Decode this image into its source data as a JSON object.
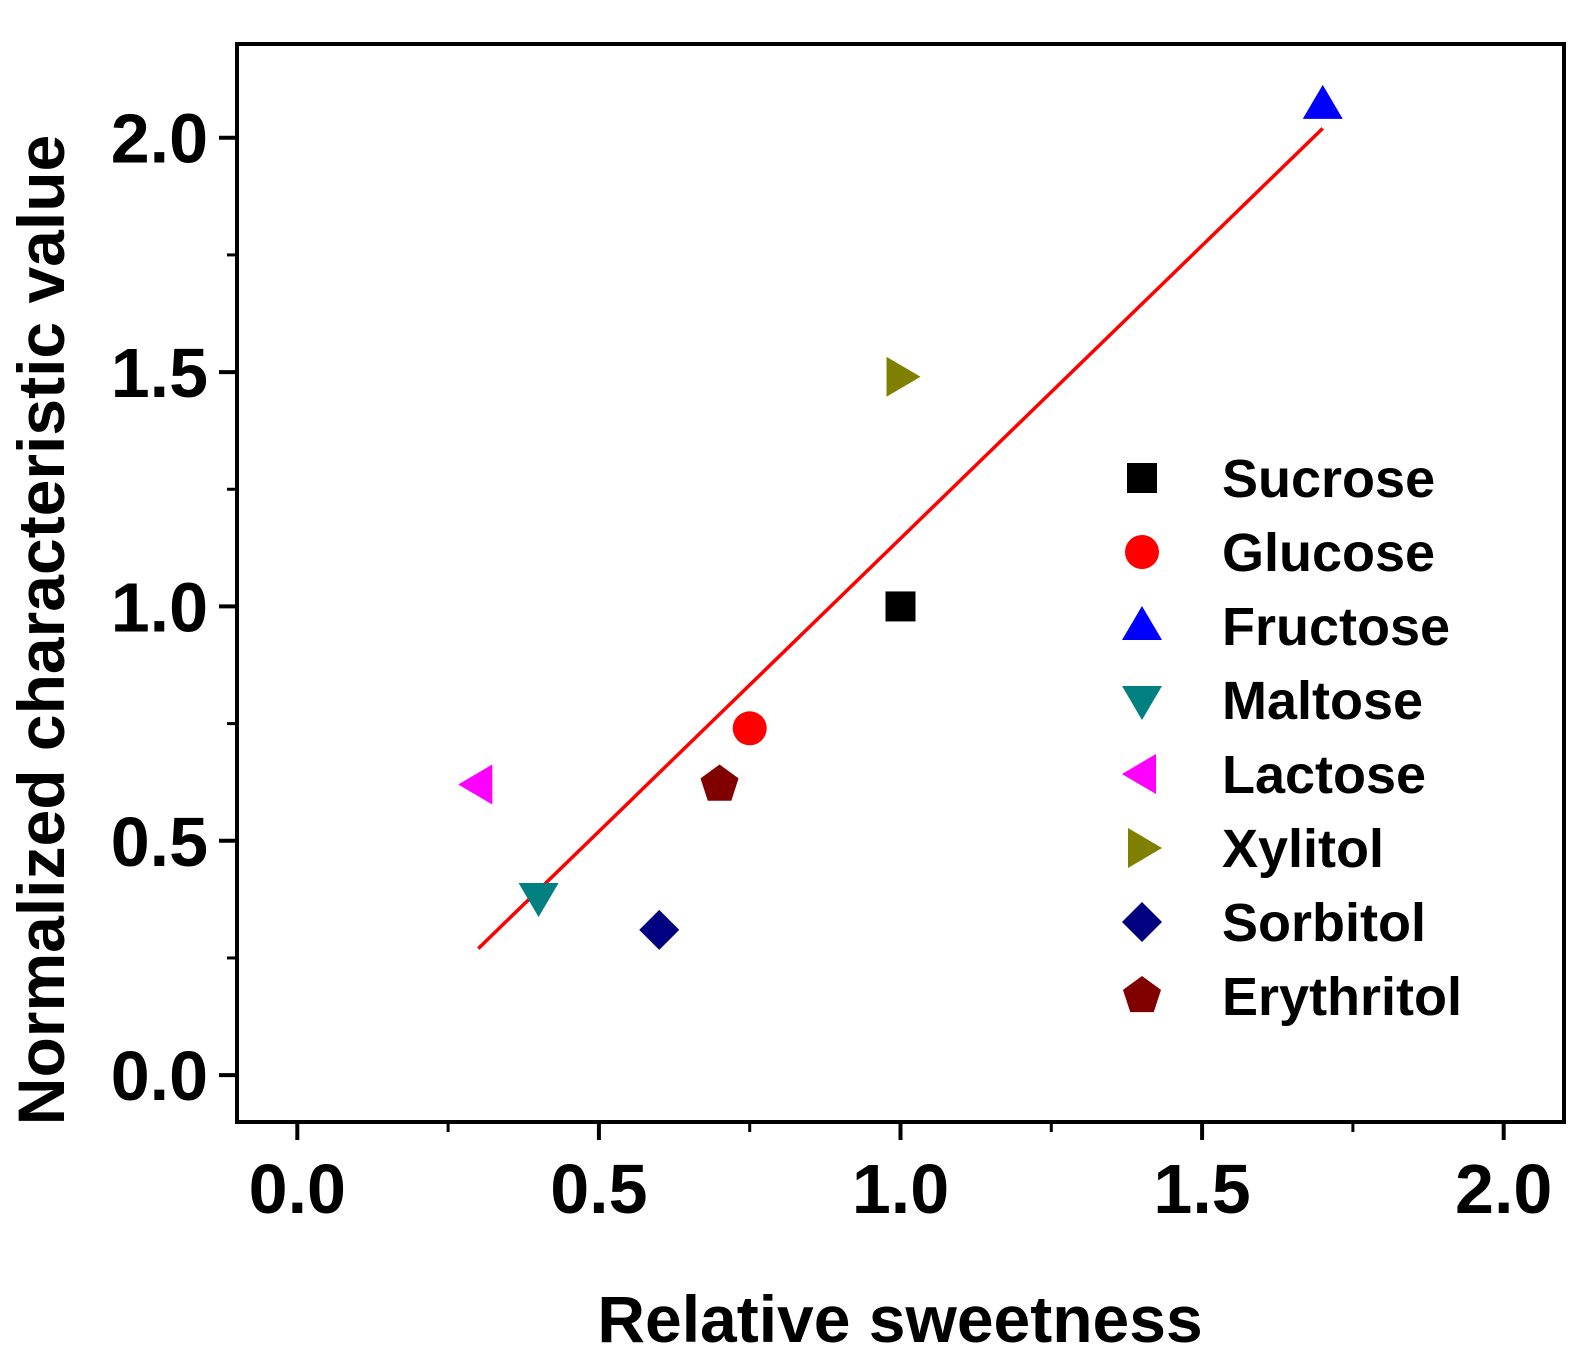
{
  "chart_data": {
    "type": "scatter",
    "title": "",
    "xlabel": "Relative sweetness",
    "ylabel": "Normalized characteristic value",
    "xlim": [
      -0.1,
      2.1
    ],
    "ylim": [
      -0.1,
      2.2
    ],
    "x_ticks": [
      "0.0",
      "0.5",
      "1.0",
      "1.5",
      "2.0"
    ],
    "y_ticks": [
      "0.0",
      "0.5",
      "1.0",
      "1.5",
      "2.0"
    ],
    "x_tick_values": [
      0,
      0.5,
      1.0,
      1.5,
      2.0
    ],
    "y_tick_values": [
      0,
      0.5,
      1.0,
      1.5,
      2.0
    ],
    "grid": false,
    "legend_position": "right",
    "series": [
      {
        "name": "Sucrose",
        "x": 1.0,
        "y": 1.0,
        "marker": "square",
        "color": "#000000"
      },
      {
        "name": "Glucose",
        "x": 0.75,
        "y": 0.74,
        "marker": "circle",
        "color": "#ff0000"
      },
      {
        "name": "Fructose",
        "x": 1.7,
        "y": 2.07,
        "marker": "triangle-up",
        "color": "#0000ff"
      },
      {
        "name": "Maltose",
        "x": 0.4,
        "y": 0.38,
        "marker": "triangle-down",
        "color": "#008080"
      },
      {
        "name": "Lactose",
        "x": 0.3,
        "y": 0.62,
        "marker": "triangle-left",
        "color": "#ff00ff"
      },
      {
        "name": "Xylitol",
        "x": 1.0,
        "y": 1.49,
        "marker": "triangle-right",
        "color": "#808000"
      },
      {
        "name": "Sorbitol",
        "x": 0.6,
        "y": 0.31,
        "marker": "diamond",
        "color": "#000080"
      },
      {
        "name": "Erythritol",
        "x": 0.7,
        "y": 0.62,
        "marker": "pentagon",
        "color": "#800000"
      }
    ],
    "fit_line": {
      "x": [
        0.3,
        1.7
      ],
      "y": [
        0.27,
        2.02
      ],
      "color": "#ff0000"
    }
  }
}
